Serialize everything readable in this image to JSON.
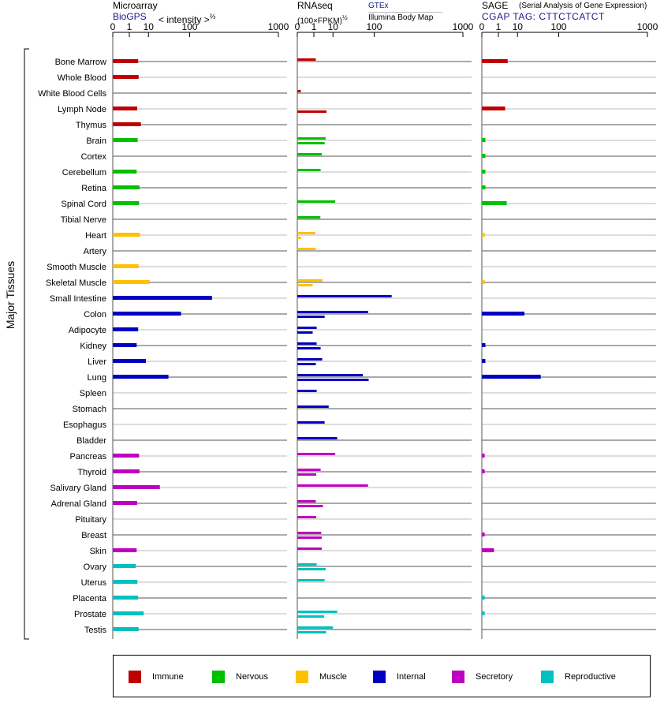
{
  "panels": {
    "microarray": {
      "title": "Microarray",
      "source": "BioGPS",
      "scale_label": "< intensity >",
      "scale_exp": "⅔"
    },
    "rnaseq": {
      "title": "RNAseq",
      "subtitle": "(100×FPKM)",
      "subtitle_exp": "½",
      "source1": "GTEx",
      "source2": "Illumina Body Map"
    },
    "sage": {
      "title": "SAGE",
      "title_note": "(Serial Analysis of Gene Expression)",
      "source": "CGAP TAG: CTTCTCATCT"
    }
  },
  "group_label": "Major Tissues",
  "colors": {
    "Immune": "#c00000",
    "Nervous": "#00c000",
    "Muscle": "#ffc000",
    "Internal": "#0000c0",
    "Secretory": "#c000c0",
    "Reproductive": "#00c0c0"
  },
  "legend": [
    {
      "label": "Immune",
      "color": "#c00000"
    },
    {
      "label": "Nervous",
      "color": "#00c000"
    },
    {
      "label": "Muscle",
      "color": "#ffc000"
    },
    {
      "label": "Internal",
      "color": "#0000c0"
    },
    {
      "label": "Secretory",
      "color": "#c000c0"
    },
    {
      "label": "Reproductive",
      "color": "#00c0c0"
    }
  ],
  "chart_data": {
    "type": "bar",
    "orientation": "horizontal",
    "x_scale": "power",
    "x_ticks": [
      0,
      1,
      10,
      100,
      1000
    ],
    "x_range": [
      0,
      1000
    ],
    "categories": [
      "Bone Marrow",
      "Whole Blood",
      "White Blood Cells",
      "Lymph Node",
      "Thymus",
      "Brain",
      "Cortex",
      "Cerebellum",
      "Retina",
      "Spinal Cord",
      "Tibial Nerve",
      "Heart",
      "Artery",
      "Smooth Muscle",
      "Skeletal Muscle",
      "Small Intestine",
      "Colon",
      "Adipocyte",
      "Kidney",
      "Liver",
      "Lung",
      "Spleen",
      "Stomach",
      "Esophagus",
      "Bladder",
      "Pancreas",
      "Thyroid",
      "Salivary Gland",
      "Adrenal Gland",
      "Pituitary",
      "Breast",
      "Skin",
      "Ovary",
      "Uterus",
      "Placenta",
      "Prostate",
      "Testis"
    ],
    "groups": [
      "Immune",
      "Immune",
      "Immune",
      "Immune",
      "Immune",
      "Nervous",
      "Nervous",
      "Nervous",
      "Nervous",
      "Nervous",
      "Nervous",
      "Muscle",
      "Muscle",
      "Muscle",
      "Muscle",
      "Internal",
      "Internal",
      "Internal",
      "Internal",
      "Internal",
      "Internal",
      "Internal",
      "Internal",
      "Internal",
      "Internal",
      "Secretory",
      "Secretory",
      "Secretory",
      "Secretory",
      "Secretory",
      "Secretory",
      "Secretory",
      "Reproductive",
      "Reproductive",
      "Reproductive",
      "Reproductive",
      "Reproductive"
    ],
    "series": [
      {
        "name": "Microarray",
        "values": [
          3.6,
          3.8,
          null,
          3.2,
          4.9,
          3.4,
          null,
          3.0,
          4.2,
          4.0,
          null,
          4.5,
          null,
          3.8,
          11.0,
          215,
          70,
          3.6,
          3.0,
          8.0,
          38,
          null,
          null,
          null,
          null,
          4.0,
          4.2,
          23,
          3.2,
          null,
          null,
          3.0,
          2.7,
          3.3,
          3.6,
          6.5,
          3.8
        ]
      },
      {
        "name": "GTEx",
        "values": [
          1.4,
          null,
          0.01,
          null,
          null,
          5.0,
          3.2,
          2.8,
          null,
          12,
          2.7,
          1.3,
          1.4,
          null,
          3.5,
          185,
          78,
          1.6,
          1.6,
          3.4,
          62,
          1.6,
          6.8,
          4.5,
          14,
          12,
          2.8,
          78,
          1.4,
          1.5,
          3.0,
          3.2,
          1.6,
          4.5,
          null,
          14,
          10
        ]
      },
      {
        "name": "Illumina Body Map",
        "values": [
          null,
          null,
          null,
          5.5,
          null,
          4.5,
          null,
          null,
          null,
          null,
          null,
          0.01,
          null,
          null,
          0.8,
          null,
          4.5,
          0.8,
          2.8,
          1.4,
          80,
          null,
          null,
          null,
          null,
          null,
          1.5,
          null,
          3.7,
          null,
          3.2,
          null,
          5.0,
          null,
          null,
          4.2,
          5.2
        ]
      },
      {
        "name": "SAGE",
        "values": [
          3.8,
          null,
          null,
          2.8,
          null,
          0.01,
          0.01,
          0.01,
          0.01,
          3.4,
          null,
          0.005,
          null,
          null,
          0.005,
          null,
          17,
          null,
          0.01,
          0.01,
          45,
          null,
          null,
          null,
          null,
          0.005,
          0.005,
          null,
          null,
          null,
          0.005,
          0.4,
          null,
          null,
          0.005,
          0.005,
          null
        ]
      }
    ]
  }
}
